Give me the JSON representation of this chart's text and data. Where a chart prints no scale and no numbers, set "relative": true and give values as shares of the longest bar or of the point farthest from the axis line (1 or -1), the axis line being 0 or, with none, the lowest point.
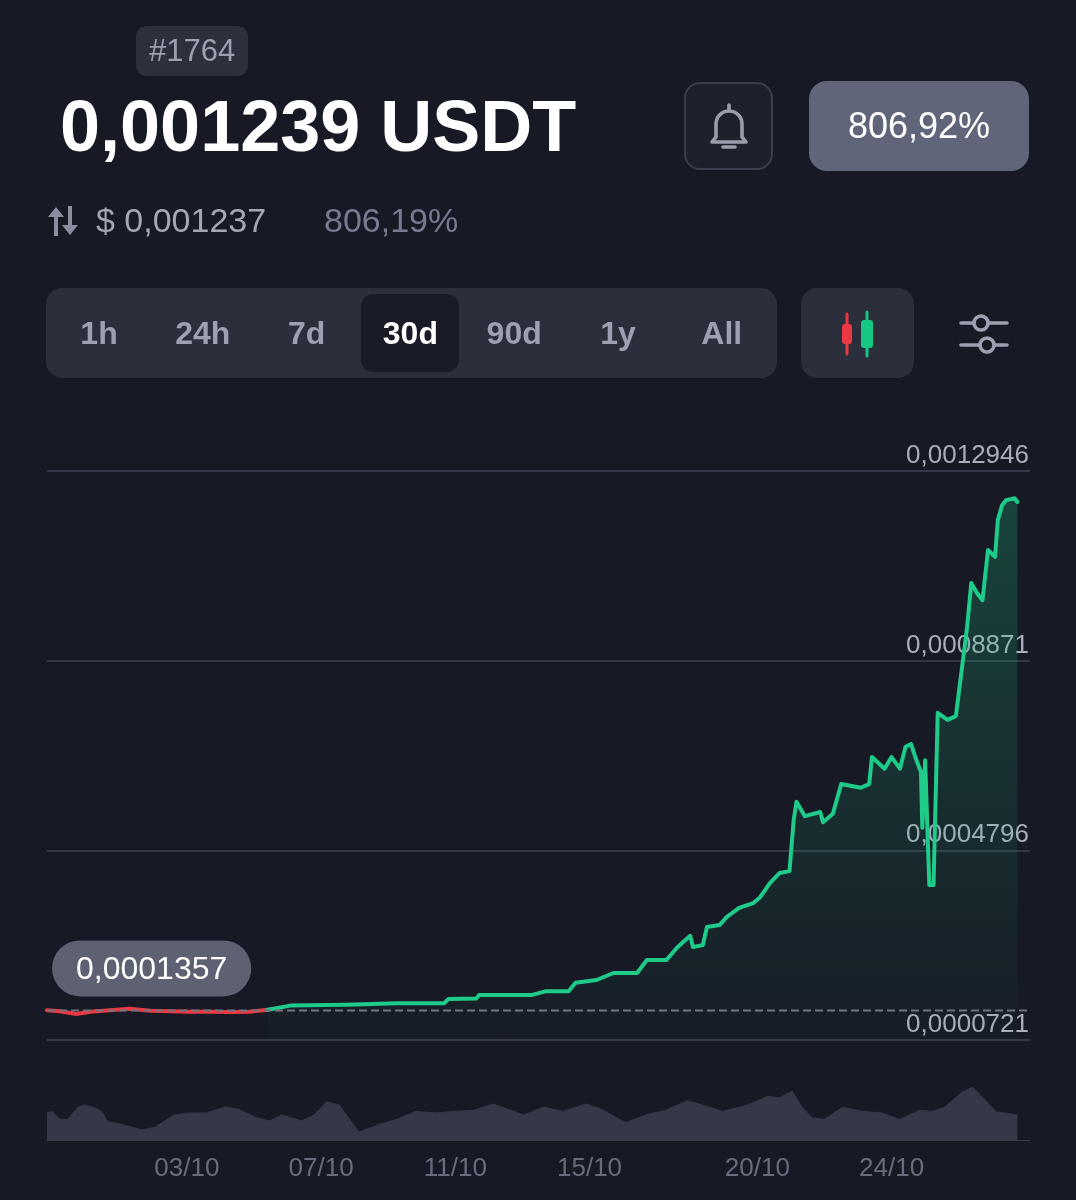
{
  "chart_data": [
    {
      "type": "other",
      "title": "0,001239 USDT",
      "annotations": [
        "#1764",
        "806,92%",
        "$ 0,001237",
        "806,19%",
        "1h",
        "24h",
        "7d",
        "30d",
        "90d",
        "1y",
        "All"
      ]
    },
    {
      "type": "area",
      "xlim": [
        "--09-28T20:00",
        "--10-28T03:00"
      ],
      "ylim": [
        7.21e-05,
        0.0012946
      ],
      "yticks": [
        {
          "value": 7.21e-05,
          "label": "0,0000721"
        },
        {
          "value": 0.0004796,
          "label": "0,0004796"
        },
        {
          "value": 0.0008871,
          "label": "0,0008871"
        },
        {
          "value": 0.0012946,
          "label": "0,0012946"
        }
      ],
      "grid": "y",
      "tick_labels": "y",
      "series": [
        {
          "type": "line",
          "color": "#ea3943",
          "x": [
            "--09-28T20:00",
            "--09-29T05:00",
            "--09-29T17:00",
            "--09-30T03:00",
            "--09-30T17:00",
            "--10-01T07:00",
            "--10-01T22:00",
            "--10-02T12:00",
            "--10-03T02:00",
            "--10-03T16:00",
            "--10-04T07:00",
            "--10-04T21:00",
            "--10-05T10:00"
          ],
          "values": [
            0.000136,
            0.000134,
            0.000128,
            0.000133,
            0.000136,
            0.000139,
            0.000135,
            0.000134,
            0.000133,
            0.000133,
            0.000132,
            0.000133,
            0.000137
          ]
        },
        {
          "color": "#1ecb89",
          "x": [
            "--10-05T10:00",
            "--10-06T02:00",
            "--10-07T18:00",
            "--10-09T06:00",
            "--10-10T16:00",
            "--10-10T19:00",
            "--10-11T15:00",
            "--10-11T17:00",
            "--10-13T07:00",
            "--10-13T17:00",
            "--10-14T09:00",
            "--10-14T14:00",
            "--10-15T05:00",
            "--10-15T17:00",
            "--10-16T10:00",
            "--10-16T17:00",
            "--10-17T07:00",
            "--10-17T15:00",
            "--10-18T00:00",
            "--10-18T02:00",
            "--10-18T09:00",
            "--10-18T12:00",
            "--10-18T21:00",
            "--10-19T02:00",
            "--10-19T11:00",
            "--10-19T21:00",
            "--10-20T02:00",
            "--10-20T09:00",
            "--10-20T16:00",
            "--10-20T23:00",
            "--10-21T02:00",
            "--10-21T04:00",
            "--10-21T10:00",
            "--10-21T21:00",
            "--10-21T23:00",
            "--10-22T06:00",
            "--10-22T12:00",
            "--10-23T02:00",
            "--10-23T08:00",
            "--10-23T10:00",
            "--10-23T19:00",
            "--10-24T00:00",
            "--10-24T06:00",
            "--10-24T10:00",
            "--10-24T14:00",
            "--10-24T17:00",
            "--10-24T21:00",
            "--10-24T22:00",
            "--10-25T00:00",
            "--10-25T03:00",
            "--10-25T06:00",
            "--10-25T09:00",
            "--10-25T16:00",
            "--10-25T22:00",
            "--10-26T06:00",
            "--10-26T09:00",
            "--10-26T13:00",
            "--10-26T17:00",
            "--10-26T21:00",
            "--10-27T02:00",
            "--10-27T04:00",
            "--10-27T07:00",
            "--10-27T10:00",
            "--10-27T16:00",
            "--10-27T18:00"
          ],
          "values": [
            0.000137,
            0.000146,
            0.000148,
            0.000151,
            0.000151,
            0.00016,
            0.000161,
            0.000169,
            0.000169,
            0.000177,
            0.000177,
            0.000195,
            0.000201,
            0.000216,
            0.000216,
            0.000244,
            0.000244,
            0.000272,
            0.000296,
            0.000272,
            0.000276,
            0.000315,
            0.000319,
            0.000336,
            0.000356,
            0.000366,
            0.000379,
            0.000409,
            0.000431,
            0.000435,
            0.000545,
            0.000584,
            0.000553,
            0.000562,
            0.00054,
            0.000558,
            0.000622,
            0.000614,
            0.000622,
            0.00068,
            0.000655,
            0.00068,
            0.000655,
            0.000702,
            0.000708,
            0.00068,
            0.000648,
            0.000528,
            0.000673,
            0.000405,
            0.000405,
            0.000775,
            0.00076,
            0.000768,
            0.000959,
            0.001054,
            0.001033,
            0.001017,
            0.001125,
            0.00111,
            0.001189,
            0.001221,
            0.001232,
            0.001236,
            0.001228
          ]
        }
      ],
      "ref_lines": [
        {
          "axis": "y",
          "value": 0.0001357,
          "label": "0,0001357",
          "color": "#70747f",
          "line_style": "dashed"
        }
      ]
    },
    {
      "type": "area",
      "relative": true,
      "xlim": [
        "--09-28T20:00",
        "--10-28T03:00"
      ],
      "xticks": [
        {
          "value": "--10-03",
          "label": "03/10"
        },
        {
          "value": "--10-07",
          "label": "07/10"
        },
        {
          "value": "--10-11",
          "label": "11/10"
        },
        {
          "value": "--10-15",
          "label": "15/10"
        },
        {
          "value": "--10-20",
          "label": "20/10"
        },
        {
          "value": "--10-24",
          "label": "24/10"
        }
      ],
      "tick_labels": "x",
      "color": "#353846",
      "x": [
        "--09-28T20:00",
        "--09-29T00:00",
        "--09-29T05:00",
        "--09-29T11:00",
        "--09-29T18:00",
        "--09-29T23:00",
        "--09-30T08:00",
        "--09-30T12:00",
        "--09-30T15:00",
        "--10-01T02:00",
        "--10-01T16:00",
        "--10-02T01:00",
        "--10-02T15:00",
        "--10-03T00:00",
        "--10-03T14:00",
        "--10-04T03:00",
        "--10-04T12:00",
        "--10-05T02:00",
        "--10-05T11:00",
        "--10-05T20:00",
        "--10-06T10:00",
        "--10-06T19:00",
        "--10-07T04:00",
        "--10-07T13:00",
        "--10-07T22:00",
        "--10-08T03:00",
        "--10-08T17:00",
        "--10-09T06:00",
        "--10-09T20:00",
        "--10-10T10:00",
        "--10-10T23:00",
        "--10-11T13:00",
        "--10-12T03:00",
        "--10-12T16:00",
        "--10-13T01:00",
        "--10-13T15:00",
        "--10-14T05:00",
        "--10-14T21:00",
        "--10-15T08:00",
        "--10-15T20:00",
        "--10-16T02:00",
        "--10-16T16:00",
        "--10-17T06:00",
        "--10-17T22:00",
        "--10-18T09:00",
        "--10-18T23:00",
        "--10-19T17:00",
        "--10-20T07:00",
        "--10-20T16:00",
        "--10-21T01:00",
        "--10-21T08:00",
        "--10-21T15:00",
        "--10-22T00:00",
        "--10-22T13:00",
        "--10-23T03:00",
        "--10-23T17:00",
        "--10-24T06:00",
        "--10-24T20:00",
        "--10-25T05:00",
        "--10-25T14:00",
        "--10-26T02:00",
        "--10-26T10:00",
        "--10-26T18:00",
        "--10-27T03:00",
        "--10-27T18:00"
      ],
      "values": [
        0.51,
        0.54,
        0.39,
        0.39,
        0.62,
        0.66,
        0.59,
        0.51,
        0.35,
        0.29,
        0.19,
        0.24,
        0.47,
        0.51,
        0.51,
        0.62,
        0.59,
        0.42,
        0.36,
        0.47,
        0.36,
        0.47,
        0.72,
        0.66,
        0.33,
        0.15,
        0.29,
        0.39,
        0.54,
        0.51,
        0.54,
        0.56,
        0.68,
        0.56,
        0.47,
        0.62,
        0.54,
        0.68,
        0.59,
        0.41,
        0.33,
        0.47,
        0.56,
        0.74,
        0.66,
        0.54,
        0.66,
        0.82,
        0.8,
        0.92,
        0.62,
        0.42,
        0.39,
        0.62,
        0.54,
        0.51,
        0.39,
        0.56,
        0.54,
        0.62,
        0.89,
        1.0,
        0.78,
        0.53,
        0.47
      ]
    }
  ]
}
